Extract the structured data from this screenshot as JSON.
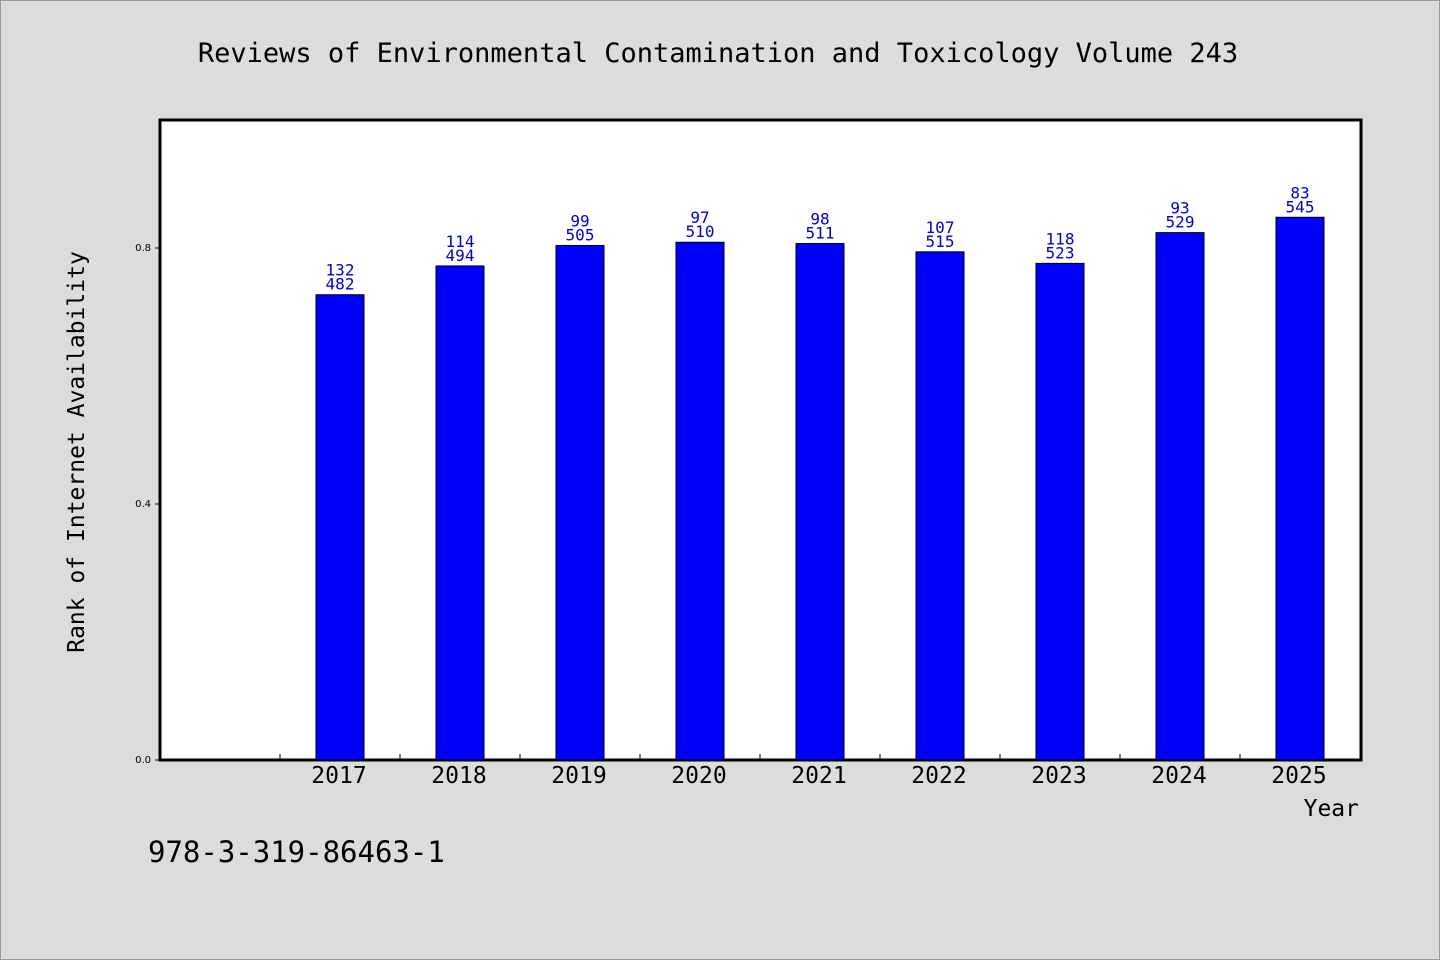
{
  "chart_data": {
    "type": "bar",
    "title": "Reviews of Environmental Contamination and Toxicology Volume 243",
    "xlabel": "Year",
    "ylabel": "Rank of Internet Availability",
    "categories": [
      "2017",
      "2018",
      "2019",
      "2020",
      "2021",
      "2022",
      "2023",
      "2024",
      "2025"
    ],
    "values": [
      0.727,
      0.772,
      0.804,
      0.809,
      0.807,
      0.794,
      0.776,
      0.824,
      0.848
    ],
    "labels_top": [
      "132",
      "114",
      "99",
      "97",
      "98",
      "107",
      "118",
      "93",
      "83"
    ],
    "labels_bottom": [
      "482",
      "494",
      "505",
      "510",
      "511",
      "515",
      "523",
      "529",
      "545"
    ],
    "ylim": [
      0,
      1.0
    ],
    "yticks": [
      0.0,
      0.4,
      0.8
    ],
    "ytick_labels": [
      "0.0",
      "0.4",
      "0.8"
    ],
    "grid": false,
    "colors": {
      "bar": "#0000ff",
      "label": "#0000cc",
      "background": "#dcdcdc",
      "plot": "#ffffff"
    }
  },
  "footer": {
    "isbn": "978-3-319-86463-1"
  }
}
